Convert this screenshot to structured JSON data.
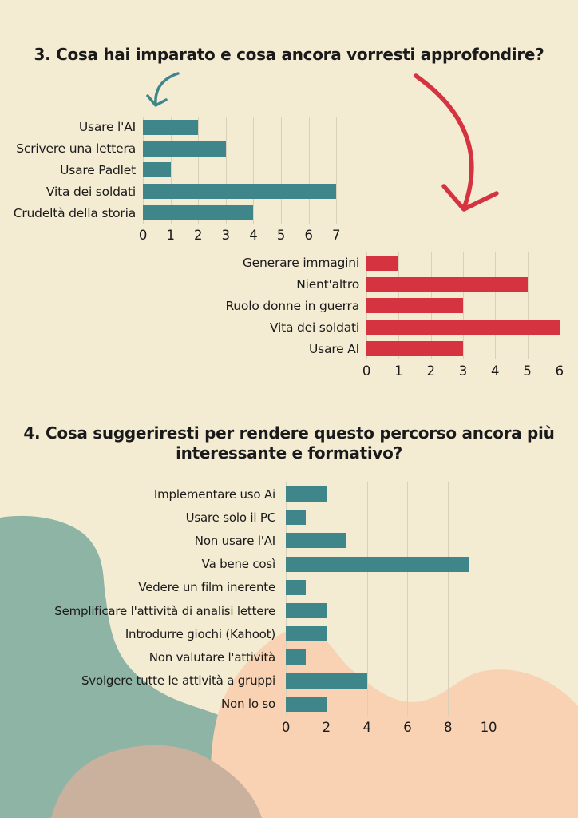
{
  "poster": {
    "question3": {
      "title": "3. Cosa hai imparato e cosa ancora vorresti approfondire?"
    },
    "question4": {
      "title_lines": [
        "4. Cosa suggeriresti per rendere questo percorso ancora più",
        "interessante e formativo?"
      ]
    }
  },
  "colors": {
    "background": "#f4ebd3",
    "teal": "#3f868a",
    "red": "#d4333f",
    "sage_blob": "#8eb4a6",
    "peach_blob": "#f8d2b3",
    "taupe_blob": "#c9b19e",
    "gridline": "#d8d0b9",
    "text": "#1a1a1a"
  },
  "decorations": {
    "teal_arrow": "hand-drawn curved arrow pointing down-left to chart 1",
    "red_arrow": "hand-drawn curved arrow pointing down to chart 2"
  },
  "chart_data": [
    {
      "name": "q3-cosa-hai-imparato",
      "type": "bar",
      "orientation": "horizontal",
      "color": "#3f868a",
      "categories": [
        "Usare l'AI",
        "Scrivere una lettera",
        "Usare Padlet",
        "Vita dei soldati",
        "Crudeltà della storia"
      ],
      "values": [
        2,
        3,
        1,
        7,
        4
      ],
      "xlim": [
        0,
        7
      ],
      "ticks": [
        0,
        1,
        2,
        3,
        4,
        5,
        6,
        7
      ],
      "grid": true,
      "legend": "none"
    },
    {
      "name": "q3-cosa-approfondire",
      "type": "bar",
      "orientation": "horizontal",
      "color": "#d4333f",
      "categories": [
        "Generare immagini",
        "Nient'altro",
        "Ruolo donne in guerra",
        "Vita dei soldati",
        "Usare AI"
      ],
      "values": [
        1,
        5,
        3,
        6,
        3
      ],
      "xlim": [
        0,
        6
      ],
      "ticks": [
        0,
        1,
        2,
        3,
        4,
        5,
        6
      ],
      "grid": true,
      "legend": "none"
    },
    {
      "name": "q4-suggerimenti",
      "type": "bar",
      "orientation": "horizontal",
      "color": "#3f868a",
      "categories": [
        "Implementare uso Ai",
        "Usare solo il PC",
        "Non usare l'AI",
        "Va bene così",
        "Vedere un film inerente",
        "Semplificare l'attività di analisi lettere",
        "Introdurre giochi (Kahoot)",
        "Non valutare l'attività",
        "Svolgere tutte le attività a gruppi",
        "Non lo so"
      ],
      "values": [
        2,
        1,
        3,
        9,
        1,
        2,
        2,
        1,
        4,
        2
      ],
      "xlim": [
        0,
        10.5
      ],
      "ticks": [
        0,
        2,
        4,
        6,
        8,
        10
      ],
      "grid": true,
      "legend": "none"
    }
  ]
}
